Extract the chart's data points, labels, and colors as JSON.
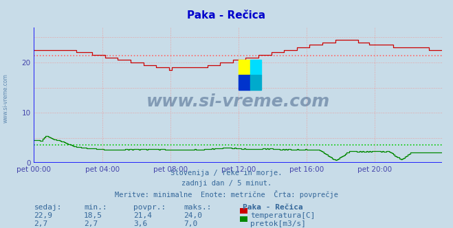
{
  "title": "Paka - Rečica",
  "title_color": "#0000cc",
  "bg_color": "#c8dce8",
  "plot_bg_color": "#c8dce8",
  "grid_color": "#e8a0a0",
  "axis_color": "#4444aa",
  "text_color": "#336699",
  "watermark_text": "www.si-vreme.com",
  "subtitle_lines": [
    "Slovenija / reke in morje.",
    "zadnji dan / 5 minut.",
    "Meritve: minimalne  Enote: metrične  Črta: povprečje"
  ],
  "x_ticks_labels": [
    "pet 00:00",
    "pet 04:00",
    "pet 08:00",
    "pet 12:00",
    "pet 16:00",
    "pet 20:00"
  ],
  "x_ticks_pos": [
    0,
    48,
    96,
    144,
    192,
    240
  ],
  "ylim": [
    0,
    27
  ],
  "xlim": [
    0,
    287
  ],
  "temp_avg": 21.4,
  "flow_avg": 3.6,
  "temp_color": "#cc0000",
  "flow_color": "#008800",
  "avg_temp_color": "#ff6666",
  "avg_flow_color": "#00cc00",
  "bottom_labels": {
    "headers": [
      "sedaj:",
      "min.:",
      "povpr.:",
      "maks.:",
      "Paka - Rečica"
    ],
    "temp_row": [
      "22,9",
      "18,5",
      "21,4",
      "24,0"
    ],
    "flow_row": [
      "2,7",
      "2,7",
      "3,6",
      "7,0"
    ],
    "temp_label": "temperatura[C]",
    "flow_label": "pretok[m3/s]"
  }
}
